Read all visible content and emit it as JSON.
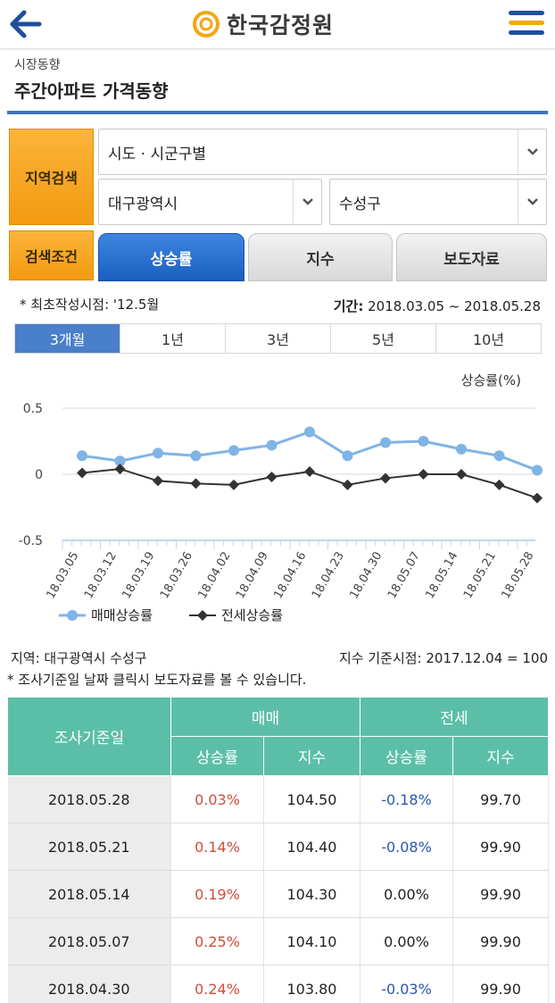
{
  "header": {
    "logo_text": "한국감정원",
    "back_icon": "arrow-left-icon",
    "menu_icon": "hamburger-menu-icon"
  },
  "page": {
    "breadcrumb": "시장동향",
    "title": "주간아파트 가격동향"
  },
  "search": {
    "region_label": "지역검색",
    "condition_label": "검색조건",
    "type_select": "시도 · 시군구별",
    "city_select": "대구광역시",
    "district_select": "수성구",
    "condition_tabs": [
      {
        "label": "상승률",
        "active": true
      },
      {
        "label": "지수",
        "active": false
      },
      {
        "label": "보도자료",
        "active": false
      }
    ]
  },
  "notes": {
    "first_created": "* 최초작성시점: '12.5월",
    "period_label": "기간:",
    "period_value": "2018.03.05 ~ 2018.05.28"
  },
  "period_tabs": [
    {
      "label": "3개월",
      "active": true
    },
    {
      "label": "1년",
      "active": false
    },
    {
      "label": "3년",
      "active": false
    },
    {
      "label": "5년",
      "active": false
    },
    {
      "label": "10년",
      "active": false
    }
  ],
  "chart_data": {
    "type": "line",
    "title": "",
    "ylabel": "상승률(%)",
    "xlabel": "",
    "ylim": [
      -0.5,
      0.5
    ],
    "yticks": [
      "0.5",
      "0",
      "-0.5"
    ],
    "categories": [
      "18.03.05",
      "18.03.12",
      "18.03.19",
      "18.03.26",
      "18.04.02",
      "18.04.09",
      "18.04.16",
      "18.04.23",
      "18.04.30",
      "18.05.07",
      "18.05.14",
      "18.05.21",
      "18.05.28"
    ],
    "series": [
      {
        "name": "매매상승률",
        "color": "#7fb4e6",
        "marker": "circle",
        "values": [
          0.14,
          0.1,
          0.16,
          0.14,
          0.18,
          0.22,
          0.32,
          0.14,
          0.24,
          0.25,
          0.19,
          0.14,
          0.03
        ]
      },
      {
        "name": "전세상승률",
        "color": "#333333",
        "marker": "diamond",
        "values": [
          0.01,
          0.04,
          -0.05,
          -0.07,
          -0.08,
          -0.02,
          0.02,
          -0.08,
          -0.03,
          0.0,
          0.0,
          -0.08,
          -0.18
        ]
      }
    ],
    "legend_position": "bottom-left",
    "grid": true
  },
  "info": {
    "region": "지역: 대구광역시 수성구",
    "base_point": "지수 기준시점: 2017.12.04 = 100",
    "click_note": "* 조사기준일 날짜 클릭시 보도자료를 볼 수 있습니다."
  },
  "table": {
    "header_date": "조사기준일",
    "header_sale": "매매",
    "header_jeonse": "전세",
    "sub_rate": "상승률",
    "sub_index": "지수",
    "rows": [
      {
        "date": "2018.05.28",
        "sale_rate": "0.03%",
        "sale_index": "104.50",
        "jeonse_rate": "-0.18%",
        "jeonse_index": "99.70"
      },
      {
        "date": "2018.05.21",
        "sale_rate": "0.14%",
        "sale_index": "104.40",
        "jeonse_rate": "-0.08%",
        "jeonse_index": "99.90"
      },
      {
        "date": "2018.05.14",
        "sale_rate": "0.19%",
        "sale_index": "104.30",
        "jeonse_rate": "0.00%",
        "jeonse_index": "99.90"
      },
      {
        "date": "2018.05.07",
        "sale_rate": "0.25%",
        "sale_index": "104.10",
        "jeonse_rate": "0.00%",
        "jeonse_index": "99.90"
      },
      {
        "date": "2018.04.30",
        "sale_rate": "0.24%",
        "sale_index": "103.80",
        "jeonse_rate": "-0.03%",
        "jeonse_index": "99.90"
      }
    ]
  }
}
